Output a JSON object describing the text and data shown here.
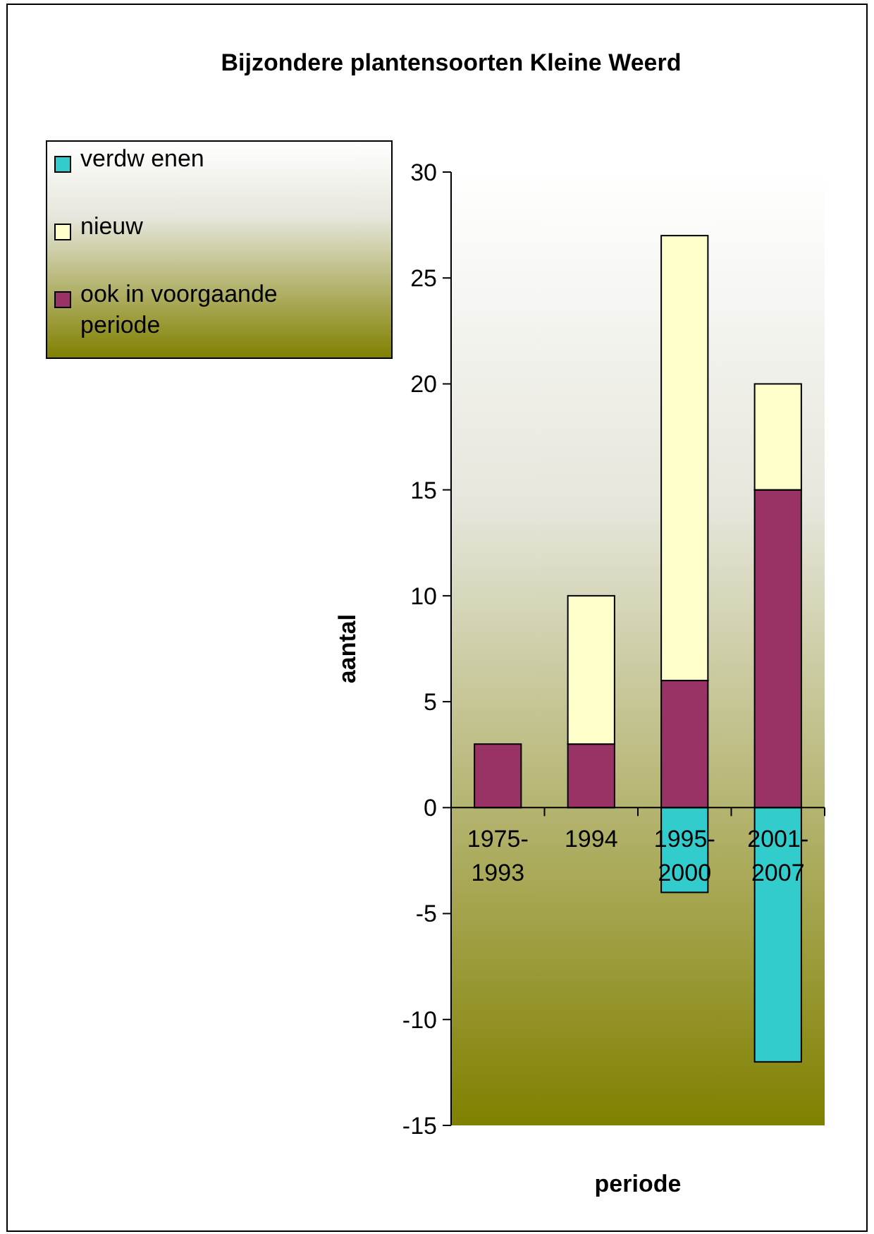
{
  "chart_data": {
    "type": "bar",
    "title": "Bijzondere plantensoorten Kleine Weerd",
    "xlabel": "periode",
    "ylabel": "aantal",
    "categories": [
      "1975-1993",
      "1994",
      "1995-2000",
      "2001-2007"
    ],
    "stacked": true,
    "series": [
      {
        "name": "ook in voorgaande periode",
        "color": "#993366",
        "values": [
          3,
          3,
          6,
          15
        ]
      },
      {
        "name": "nieuw",
        "color": "#ffffcc",
        "values": [
          null,
          7,
          21,
          5
        ]
      },
      {
        "name": "verdw enen",
        "color": "#33cccc",
        "values": [
          null,
          null,
          -4,
          -12
        ]
      }
    ],
    "ylim": [
      -15,
      30
    ],
    "yticks": [
      -15,
      -10,
      -5,
      0,
      5,
      10,
      15,
      20,
      25,
      30
    ],
    "grid": false,
    "legend": "top left"
  }
}
